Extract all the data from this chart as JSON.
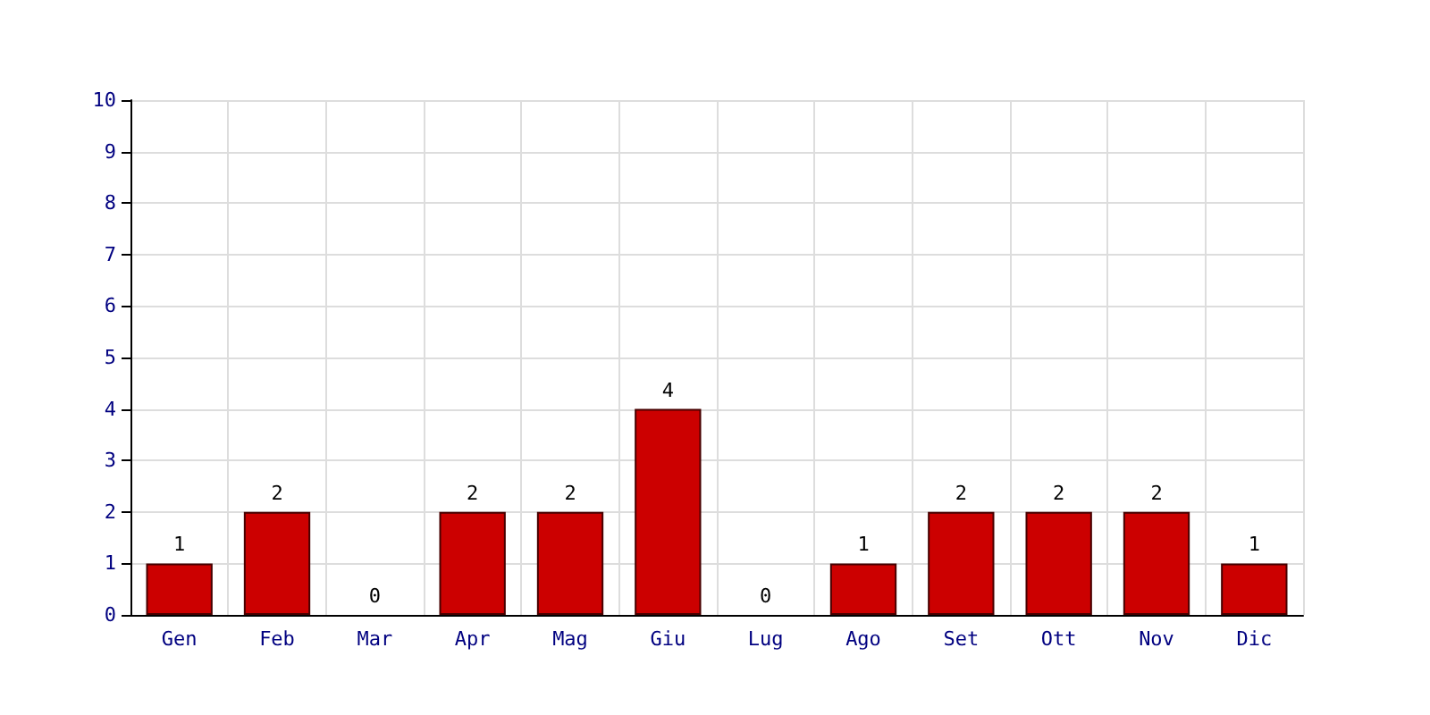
{
  "chart_data": {
    "type": "bar",
    "categories": [
      "Gen",
      "Feb",
      "Mar",
      "Apr",
      "Mag",
      "Giu",
      "Lug",
      "Ago",
      "Set",
      "Ott",
      "Nov",
      "Dic"
    ],
    "values": [
      1,
      2,
      0,
      2,
      2,
      4,
      0,
      1,
      2,
      2,
      2,
      1
    ],
    "color": "#cc0000",
    "ylim": [
      0,
      10
    ],
    "yticks": [
      0,
      1,
      2,
      3,
      4,
      5,
      6,
      7,
      8,
      9,
      10
    ],
    "grid": true,
    "data_labels": true
  }
}
